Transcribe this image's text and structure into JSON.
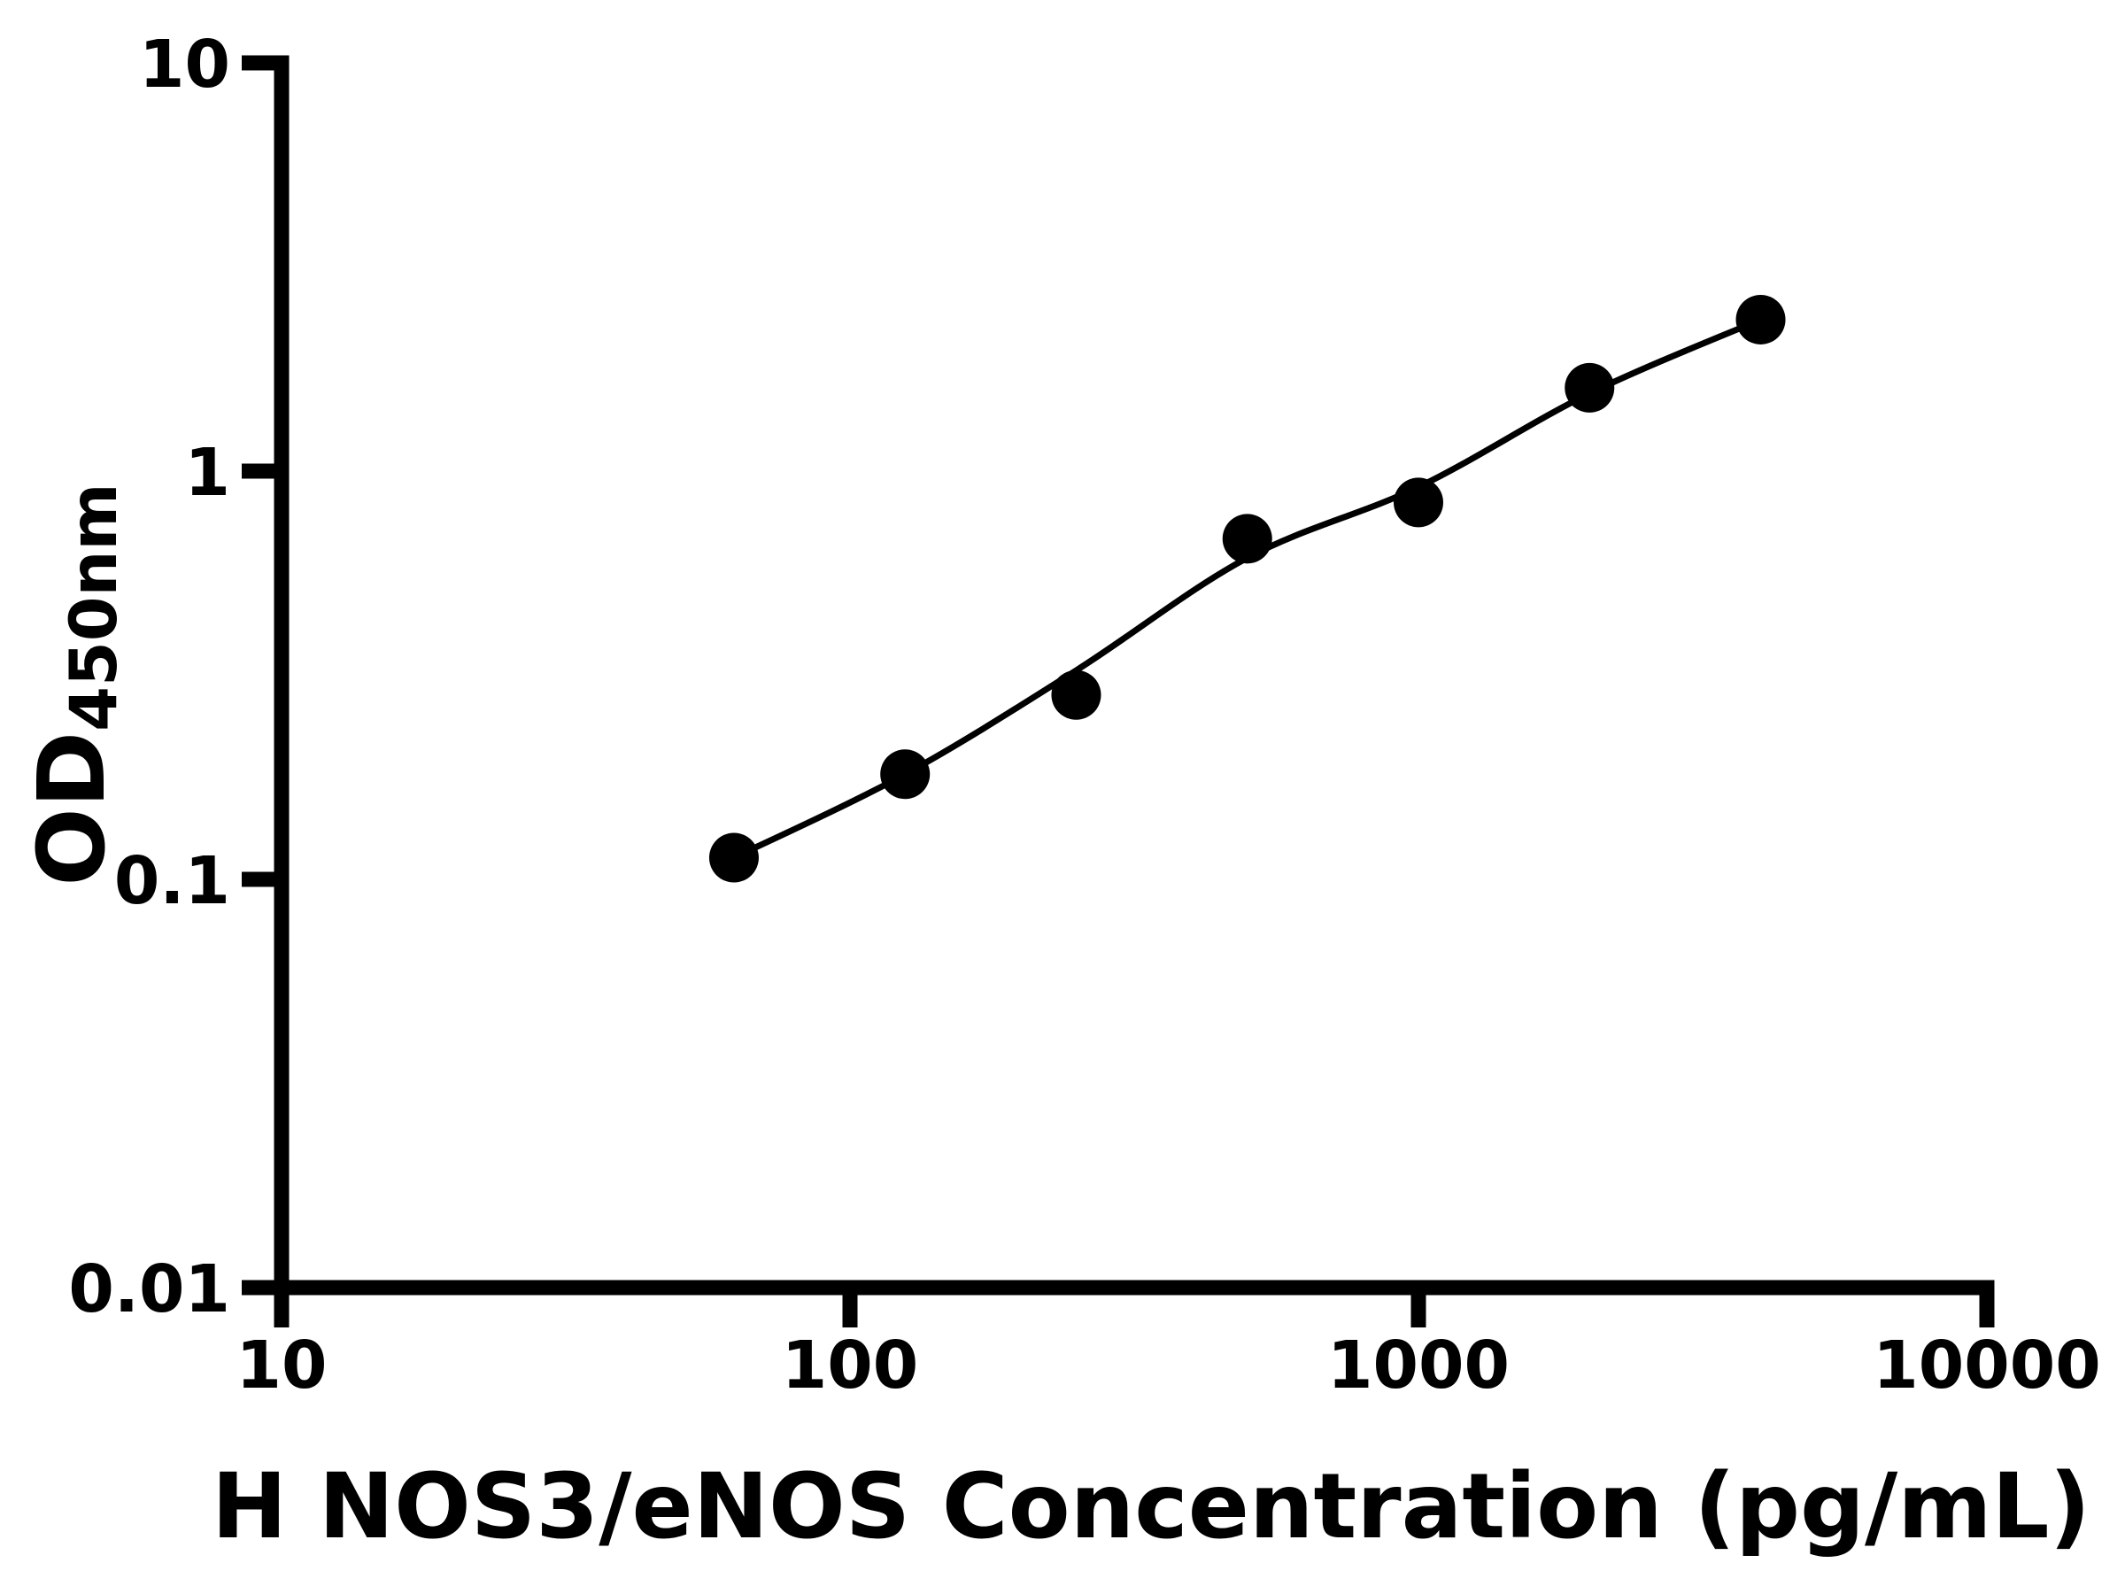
{
  "chart_data": {
    "type": "scatter",
    "title": "",
    "xlabel": "H NOS3/eNOS Concentration (pg/mL)",
    "ylabel": "OD450nm",
    "ylabel_main": "OD",
    "ylabel_sub": "450nm",
    "x_scale": "log",
    "y_scale": "log",
    "xlim": [
      10,
      10000
    ],
    "ylim": [
      0.01,
      10
    ],
    "grid": false,
    "legend": "none",
    "axis_color": "#000000",
    "marker_color": "#000000",
    "line_color": "#000000",
    "background_color": "#ffffff",
    "x_ticks": [
      {
        "value": 10,
        "label": "10"
      },
      {
        "value": 100,
        "label": "100"
      },
      {
        "value": 1000,
        "label": "1000"
      },
      {
        "value": 10000,
        "label": "10000"
      }
    ],
    "y_ticks": [
      {
        "value": 10,
        "label": "10"
      },
      {
        "value": 1,
        "label": "1"
      },
      {
        "value": 0.1,
        "label": "0.1"
      },
      {
        "value": 0.01,
        "label": "0.01"
      }
    ],
    "points": [
      {
        "x": 62.5,
        "y": 0.113
      },
      {
        "x": 125,
        "y": 0.181
      },
      {
        "x": 250,
        "y": 0.283
      },
      {
        "x": 500,
        "y": 0.683
      },
      {
        "x": 1000,
        "y": 0.838
      },
      {
        "x": 2000,
        "y": 1.6
      },
      {
        "x": 4000,
        "y": 2.35
      }
    ],
    "fit_line": [
      {
        "x": 62.5,
        "y": 0.113
      },
      {
        "x": 125,
        "y": 0.181
      },
      {
        "x": 250,
        "y": 0.325
      },
      {
        "x": 500,
        "y": 0.613
      },
      {
        "x": 1000,
        "y": 0.914
      },
      {
        "x": 2000,
        "y": 1.55
      },
      {
        "x": 4000,
        "y": 2.35
      }
    ]
  }
}
